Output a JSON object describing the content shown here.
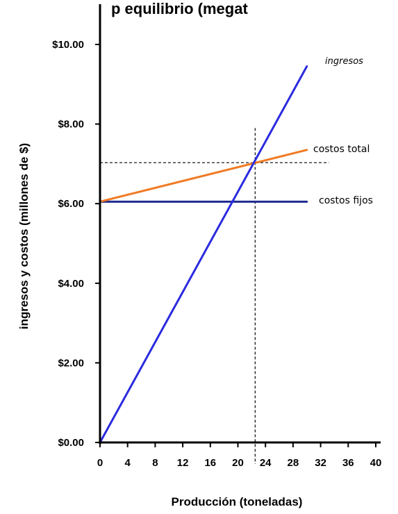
{
  "chart_data": {
    "type": "line",
    "title": "p      equilibrio (megat",
    "xlabel": "Producción  (toneladas)",
    "ylabel": "ingresos y costos (millones de $)",
    "xlim": [
      0,
      40
    ],
    "ylim": [
      0,
      10
    ],
    "x_ticks": [
      0,
      4,
      8,
      12,
      16,
      20,
      24,
      28,
      32,
      36,
      40
    ],
    "y_ticks": [
      0,
      2,
      4,
      6,
      8,
      10
    ],
    "y_tick_labels": [
      "$0.00",
      "$2.00",
      "$4.00",
      "$6.00",
      "$8.00",
      "$10.00"
    ],
    "x_tick_labels": [
      "0",
      "4",
      "8",
      "12",
      "16",
      "20",
      "24",
      "28",
      "32",
      "36",
      "40"
    ],
    "series": [
      {
        "name": "ingresos",
        "x": [
          0,
          30
        ],
        "y": [
          0,
          9.45
        ],
        "color": "#2a2adf"
      },
      {
        "name": "costos total",
        "x": [
          0,
          30
        ],
        "y": [
          6.05,
          7.35
        ],
        "color": "#f07a24"
      },
      {
        "name": "costos fijos",
        "x": [
          0,
          30
        ],
        "y": [
          6.05,
          6.05
        ],
        "color": "#1f2a8f"
      }
    ],
    "breakeven": {
      "x": 22.5,
      "y": 7.03
    },
    "grid": false
  }
}
